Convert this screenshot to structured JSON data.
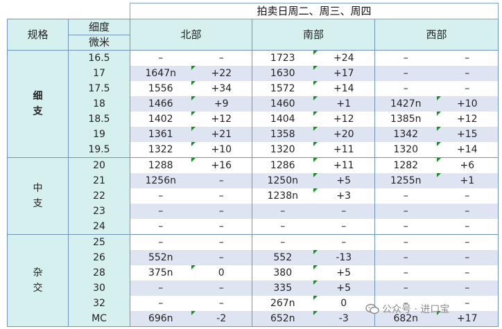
{
  "title": "拍卖日周二、周三、周四",
  "headers": {
    "spec": "规格",
    "fine_top": "细度",
    "fine_bottom": "微米",
    "north": "北部",
    "south": "南部",
    "west": "西部"
  },
  "groups": [
    {
      "label": "细\n支",
      "bold": true,
      "rows": [
        [
          "16.5",
          "–",
          "–",
          "1723",
          "+24",
          "–",
          "–"
        ],
        [
          "17",
          "1647n",
          "+22",
          "1630",
          "+17",
          "–",
          "–"
        ],
        [
          "17.5",
          "1556",
          "+34",
          "1572",
          "+14",
          "–",
          "–"
        ],
        [
          "18",
          "1466",
          "+9",
          "1460",
          "+1",
          "1427n",
          "+10"
        ],
        [
          "18.5",
          "1402",
          "+12",
          "1404",
          "+12",
          "1385n",
          "+12"
        ],
        [
          "19",
          "1361",
          "+21",
          "1358",
          "+20",
          "1342",
          "+15"
        ],
        [
          "19.5",
          "1322",
          "+10",
          "1320",
          "+11",
          "1320",
          "+14"
        ]
      ]
    },
    {
      "label": "中\n支",
      "bold": false,
      "rows": [
        [
          "20",
          "1288",
          "+16",
          "1286",
          "+11",
          "1282",
          "+6"
        ],
        [
          "21",
          "1256n",
          "–",
          "1250n",
          "+5",
          "1255n",
          "+1"
        ],
        [
          "22",
          "–",
          "–",
          "1238n",
          "+3",
          "–",
          "–"
        ],
        [
          "23",
          "–",
          "–",
          "–",
          "–",
          "–",
          "–"
        ],
        [
          "24",
          "–",
          "–",
          "–",
          "–",
          "–",
          "–"
        ]
      ]
    },
    {
      "label": "杂\n交",
      "bold": false,
      "rows": [
        [
          "25",
          "–",
          "–",
          "–",
          "–",
          "–",
          "–"
        ],
        [
          "26",
          "552n",
          "–",
          "552",
          "-13",
          "–",
          "–"
        ],
        [
          "28",
          "375n",
          "0",
          "380",
          "+5",
          "–",
          "–"
        ],
        [
          "30",
          "–",
          "–",
          "335",
          "+5",
          "–",
          "–"
        ],
        [
          "32",
          "–",
          "–",
          "267n",
          "0",
          "–",
          "–"
        ],
        [
          "MC",
          "696n",
          "-2",
          "652n",
          "-3",
          "682n",
          "+17"
        ]
      ]
    }
  ],
  "watermark": "公众号 · 进口宝",
  "colors": {
    "header_bg": "#d6efef",
    "band_bg": "#dfe4f2",
    "grid": "#6e93bd",
    "marker": "#1f8a2a"
  }
}
